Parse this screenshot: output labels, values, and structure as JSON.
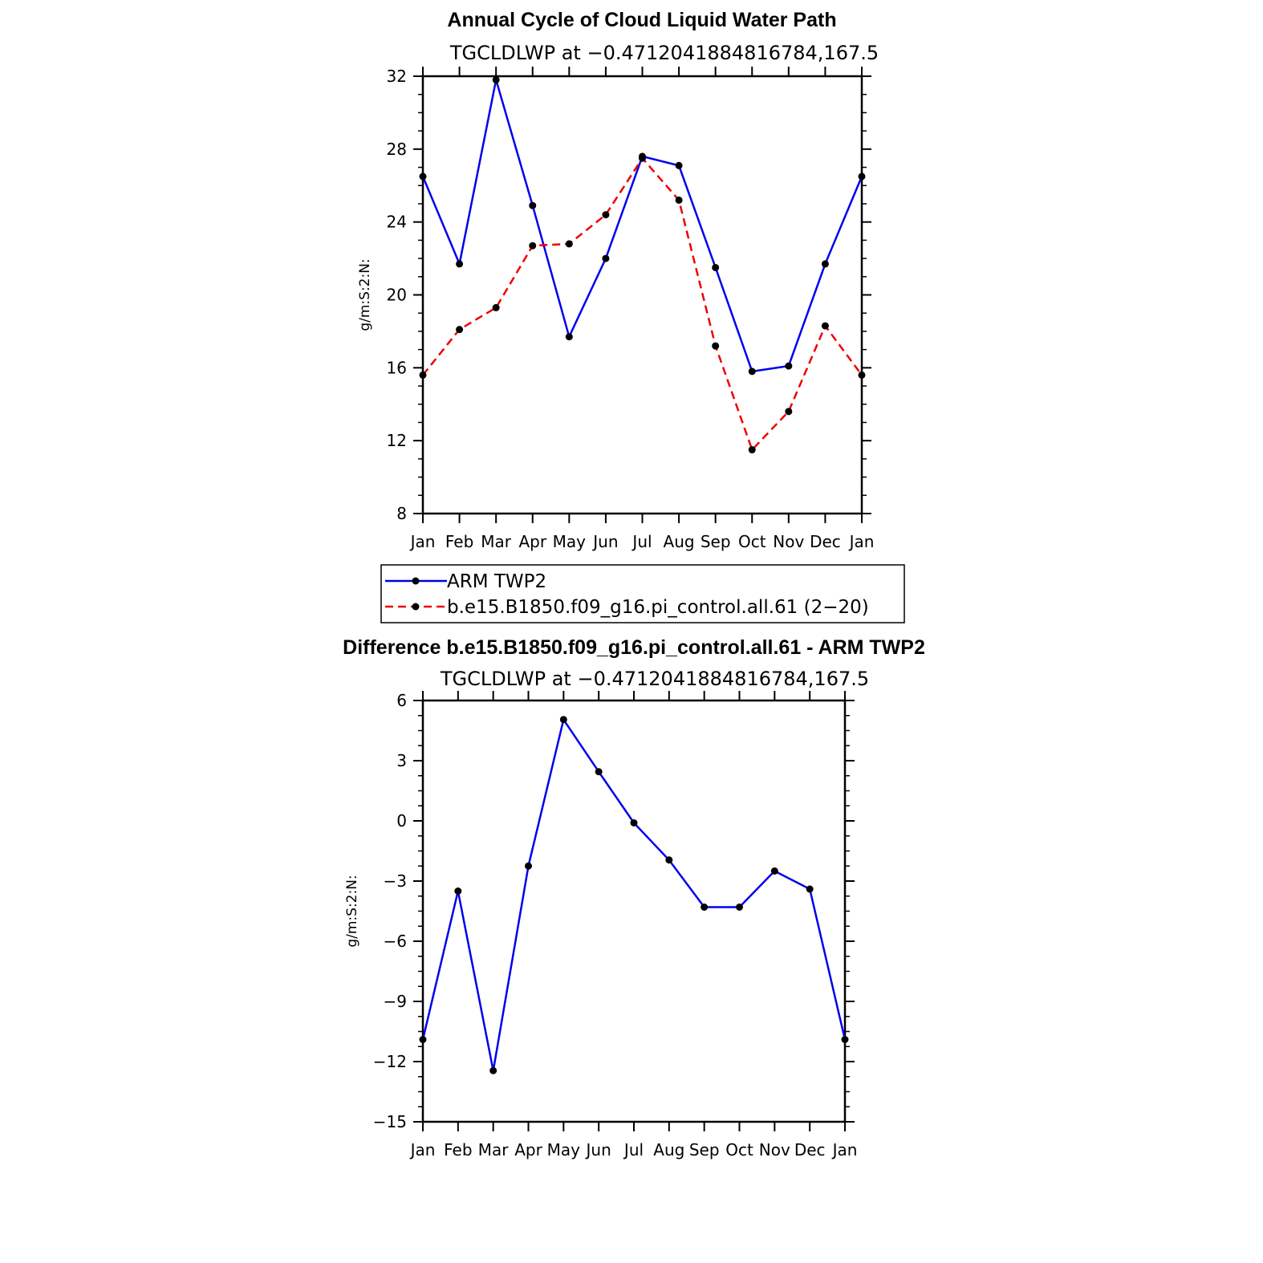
{
  "chart_data": [
    {
      "type": "line",
      "title": "Annual Cycle of Cloud Liquid Water Path",
      "subtitle": "TGCLDLWP  at  −0.4712041884816784,167.5",
      "ylabel": "g/m:S:2:N:",
      "ylim": [
        8,
        32
      ],
      "yticks": [
        8,
        12,
        16,
        20,
        24,
        28,
        32
      ],
      "ytick_labels": [
        "8",
        "12",
        "16",
        "20",
        "24",
        "28",
        "32"
      ],
      "categories": [
        "Jan",
        "Feb",
        "Mar",
        "Apr",
        "May",
        "Jun",
        "Jul",
        "Aug",
        "Sep",
        "Oct",
        "Nov",
        "Dec",
        "Jan"
      ],
      "series": [
        {
          "name": "ARM  TWP2",
          "color": "#0000ee",
          "dash": "solid",
          "values": [
            26.5,
            21.7,
            31.8,
            24.9,
            17.7,
            22.0,
            27.6,
            27.1,
            21.5,
            15.8,
            16.1,
            21.7,
            26.5
          ]
        },
        {
          "name": "b.e15.B1850.f09_g16.pi_control.all.61 (2−20)",
          "color": "#ee0000",
          "dash": "dashed",
          "values": [
            15.6,
            18.1,
            19.3,
            22.7,
            22.8,
            24.4,
            27.5,
            25.2,
            17.2,
            11.5,
            13.6,
            18.3,
            15.6
          ]
        }
      ],
      "legend": "bottom"
    },
    {
      "type": "line",
      "title": "Difference b.e15.B1850.f09_g16.pi_control.all.61 - ARM TWP2",
      "subtitle": "TGCLDLWP  at  −0.4712041884816784,167.5",
      "ylabel": "g/m:S:2:N:",
      "ylim": [
        -15,
        6
      ],
      "yticks": [
        -15,
        -12,
        -9,
        -6,
        -3,
        0,
        3,
        6
      ],
      "ytick_labels": [
        "−15",
        "−12",
        "−9",
        "−6",
        "−3",
        "0",
        "3",
        "6"
      ],
      "categories": [
        "Jan",
        "Feb",
        "Mar",
        "Apr",
        "May",
        "Jun",
        "Jul",
        "Aug",
        "Sep",
        "Oct",
        "Nov",
        "Dec",
        "Jan"
      ],
      "series": [
        {
          "color": "#0000ee",
          "dash": "solid",
          "values": [
            -10.9,
            -3.5,
            -12.45,
            -2.25,
            5.05,
            2.45,
            -0.1,
            -1.95,
            -4.3,
            -4.3,
            -2.5,
            -3.4,
            -10.9
          ]
        }
      ]
    }
  ]
}
